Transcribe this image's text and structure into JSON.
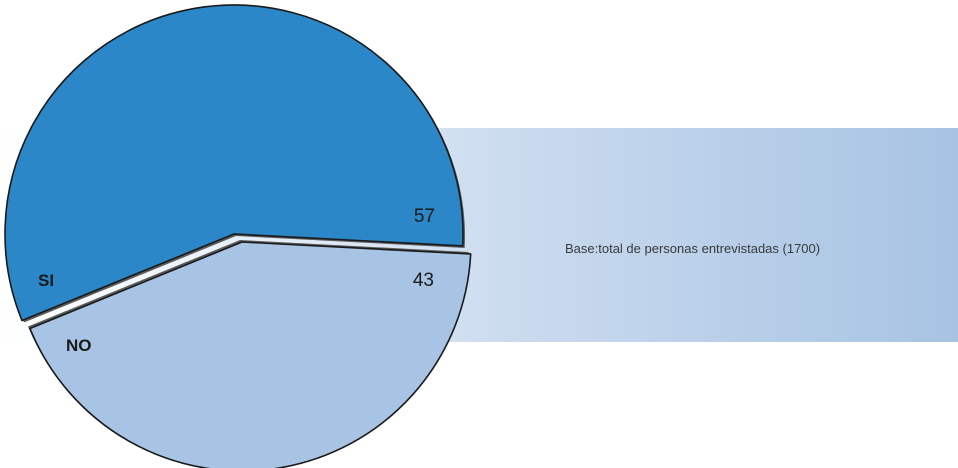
{
  "chart_data": {
    "type": "pie",
    "slices": [
      {
        "label": "SI",
        "value": 57,
        "value_label": "57",
        "color": "#2b87c8"
      },
      {
        "label": "NO",
        "value": 43,
        "value_label": "43",
        "color": "#a8c4e4"
      }
    ],
    "gap_color": "#5a5c5e",
    "outline_color": "#1a1a1a",
    "label_color": "#1a1a1a"
  },
  "note": "Base:total de personas entrevistadas (1700)",
  "colors": {
    "band_start": "#ffffff",
    "band_end": "#a7c3e3"
  }
}
